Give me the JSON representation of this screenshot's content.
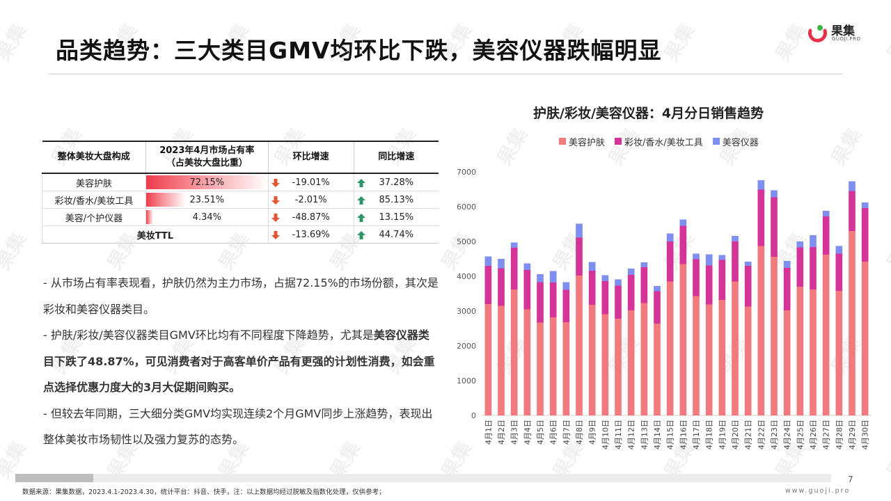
{
  "title": "品类趋势：三大类目GMV均环比下跌，美容仪器跌幅明显",
  "logo": {
    "name": "果集",
    "sub": "GUOJI.PRO",
    "watermark": "果集"
  },
  "table": {
    "headers": [
      "整体美妆大盘构成",
      "2023年4月市场占有率",
      "（占美妆大盘比重）",
      "环比增速",
      "同比增速"
    ],
    "rows": [
      {
        "category": "美容护肤",
        "share": "72.15%",
        "share_value": 72.15,
        "mom": "-19.01%",
        "yoy": "37.28%"
      },
      {
        "category": "彩妆/香水/美妆工具",
        "share": "23.51%",
        "share_value": 23.51,
        "mom": "-2.01%",
        "yoy": "85.13%"
      },
      {
        "category": "美容/个护仪器",
        "share": "4.34%",
        "share_value": 4.34,
        "mom": "-48.87%",
        "yoy": "13.15%"
      }
    ],
    "total": {
      "category": "美妆TTL",
      "mom": "-13.69%",
      "yoy": "44.74%"
    }
  },
  "bullets": {
    "b1": "- 从市场占有率表现看，护肤仍然为主力市场，占据72.15%的市场份额，其次是彩妆和美容仪器类目。",
    "b2_normal": "- 护肤/彩妆/美容仪器类目GMV环比均有不同程度下降趋势，尤其是",
    "b2_bold": "美容仪器类目下跌了48.87%，可见消费者对于高客单价产品有更强的计划性消费，如会重点选择优惠力度大的3月大促期间购买。",
    "b3": "- 但较去年同期，三大细分类GMV均实现连续2个月GMV同步上涨趋势，表现出整体美妆市场韧性以及强力复苏的态势。"
  },
  "footer": {
    "source": "数据来源：果集数据，2023.4.1-2023.4.30，统计平台：抖音、快手，注：以上数据均经过脱敏及指数化处理，仅供参考；",
    "page": "7",
    "website": "www.guoji.pro"
  },
  "colors": {
    "skincare": "#f07a7e",
    "makeup": "#d63399",
    "device": "#7f8ff0",
    "down_arrow": "#e0582f",
    "up_arrow": "#2f9468"
  },
  "chart_data": {
    "type": "bar",
    "stacked": true,
    "title": "护肤/彩妆/美容仪器：4月分日销售趋势",
    "ylim": [
      0,
      7000
    ],
    "yticks": [
      0,
      1000,
      2000,
      3000,
      4000,
      5000,
      6000,
      7000
    ],
    "legend_position": "top",
    "categories": [
      "4月1日",
      "4月2日",
      "4月3日",
      "4月4日",
      "4月5日",
      "4月6日",
      "4月7日",
      "4月8日",
      "4月9日",
      "4月10日",
      "4月11日",
      "4月12日",
      "4月13日",
      "4月14日",
      "4月15日",
      "4月16日",
      "4月17日",
      "4月18日",
      "4月19日",
      "4月20日",
      "4月21日",
      "4月22日",
      "4月23日",
      "4月24日",
      "4月25日",
      "4月26日",
      "4月27日",
      "4月28日",
      "4月29日",
      "4月30日"
    ],
    "series": [
      {
        "name": "美容护肤",
        "values": [
          3200,
          3150,
          3620,
          3050,
          2670,
          2820,
          2680,
          4020,
          3180,
          2910,
          2780,
          3020,
          3230,
          2640,
          3850,
          4350,
          3430,
          3190,
          3320,
          3850,
          3130,
          4870,
          4560,
          3020,
          3700,
          3620,
          4620,
          3580,
          5300,
          4420
        ]
      },
      {
        "name": "彩妆/香水/美妆工具",
        "values": [
          1100,
          1080,
          1200,
          1130,
          1160,
          1000,
          930,
          1090,
          980,
          950,
          950,
          1020,
          1030,
          930,
          1150,
          1100,
          1060,
          1120,
          1150,
          1150,
          1170,
          1620,
          1710,
          1220,
          1130,
          1220,
          1100,
          1070,
          1150,
          1540
        ]
      },
      {
        "name": "美容仪器",
        "values": [
          270,
          270,
          150,
          190,
          230,
          330,
          220,
          400,
          250,
          170,
          180,
          180,
          140,
          150,
          230,
          180,
          160,
          320,
          140,
          160,
          120,
          270,
          200,
          200,
          170,
          340,
          160,
          220,
          280,
          160
        ]
      }
    ]
  }
}
